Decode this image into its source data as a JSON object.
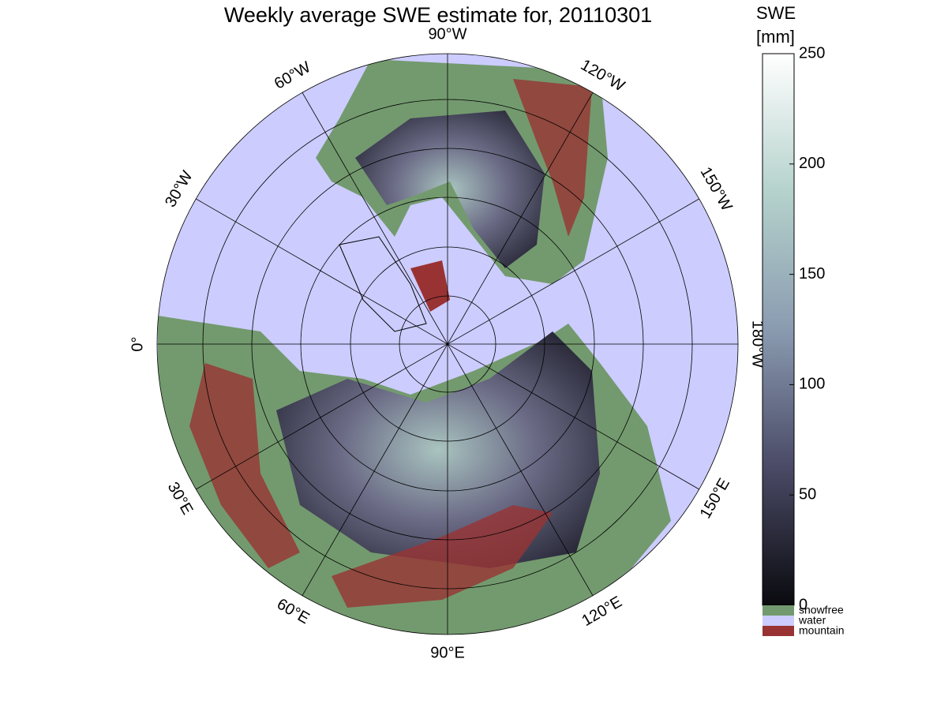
{
  "title": "Weekly average SWE estimate for, 20110301",
  "longitude_labels": [
    "90°W",
    "120°W",
    "150°W",
    "180°W",
    "150°E",
    "120°E",
    "90°E",
    "60°E",
    "30°E",
    "0°",
    "30°W",
    "60°W"
  ],
  "colorbar": {
    "label": [
      "SWE",
      "[mm]"
    ],
    "lim": [
      0,
      250
    ],
    "ticks": [
      0,
      50,
      100,
      150,
      200,
      250
    ],
    "colors": [
      "#0a0a0f",
      "#4a4a66",
      "#8a9bb0",
      "#b5d2cc",
      "#ffffff"
    ]
  },
  "categories": [
    {
      "name": "snowfree",
      "color": "#739a6e"
    },
    {
      "name": "water",
      "color": "#ccccff"
    },
    {
      "name": "mountain",
      "color": "#993333"
    }
  ]
}
